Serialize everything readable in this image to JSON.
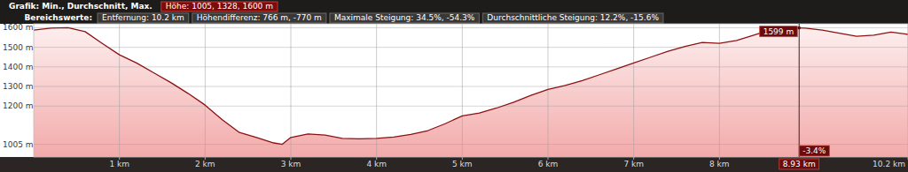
{
  "chart_data": {
    "type": "area",
    "header": {
      "title": "Grafik: Min., Durchschnitt, Max.",
      "title_value": "Höhe: 1005, 1328, 1600 m",
      "range_label": "Bereichswerte:",
      "range_items": [
        "Entfernung: 10.2 km",
        "Höhendifferenz: 766 m, -770 m",
        "Maximale Steigung: 34.5%, -54.3%",
        "Durchschnittliche Steigung: 12.2%, -15.6%"
      ]
    },
    "x": [
      0,
      0.2,
      0.4,
      0.6,
      0.8,
      1.0,
      1.2,
      1.4,
      1.6,
      1.8,
      2.0,
      2.2,
      2.4,
      2.6,
      2.8,
      2.9,
      3.0,
      3.2,
      3.4,
      3.6,
      3.8,
      4.0,
      4.2,
      4.4,
      4.6,
      4.8,
      5.0,
      5.2,
      5.4,
      5.6,
      5.8,
      6.0,
      6.2,
      6.4,
      6.6,
      6.8,
      7.0,
      7.2,
      7.4,
      7.6,
      7.8,
      8.0,
      8.2,
      8.4,
      8.6,
      8.8,
      9.0,
      9.2,
      9.4,
      9.6,
      9.8,
      10.0,
      10.2
    ],
    "values": [
      1588,
      1598,
      1600,
      1580,
      1520,
      1462,
      1420,
      1370,
      1320,
      1265,
      1205,
      1130,
      1065,
      1040,
      1012,
      1005,
      1040,
      1058,
      1052,
      1035,
      1033,
      1035,
      1042,
      1055,
      1075,
      1110,
      1150,
      1165,
      1190,
      1220,
      1255,
      1285,
      1305,
      1330,
      1360,
      1390,
      1420,
      1450,
      1480,
      1505,
      1525,
      1520,
      1535,
      1562,
      1590,
      1600,
      1598,
      1588,
      1572,
      1556,
      1562,
      1578,
      1566
    ],
    "color": "#8b1212",
    "xlim": [
      0,
      10.2
    ],
    "ylim": [
      940,
      1620
    ],
    "xticks": [
      {
        "value": 1,
        "label": "1 km"
      },
      {
        "value": 2,
        "label": "2 km"
      },
      {
        "value": 3,
        "label": "3 km"
      },
      {
        "value": 4,
        "label": "4 km"
      },
      {
        "value": 5,
        "label": "5 km"
      },
      {
        "value": 6,
        "label": "6 km"
      },
      {
        "value": 7,
        "label": "7 km"
      },
      {
        "value": 8,
        "label": "8 km"
      },
      {
        "value": 10.2,
        "label": "10.2 km"
      }
    ],
    "yticks": [
      {
        "value": 1005,
        "label": "1005 m"
      },
      {
        "value": 1200,
        "label": "1200 m"
      },
      {
        "value": 1300,
        "label": "1300 m"
      },
      {
        "value": 1400,
        "label": "1400 m"
      },
      {
        "value": 1500,
        "label": "1500 m"
      },
      {
        "value": 1600,
        "label": "1600 m"
      }
    ],
    "grid": true,
    "cursor": {
      "x": 8.93,
      "x_label": "8.93 km",
      "y": 1599,
      "y_label": "1599 m",
      "slope_label": "-3.4%"
    }
  }
}
